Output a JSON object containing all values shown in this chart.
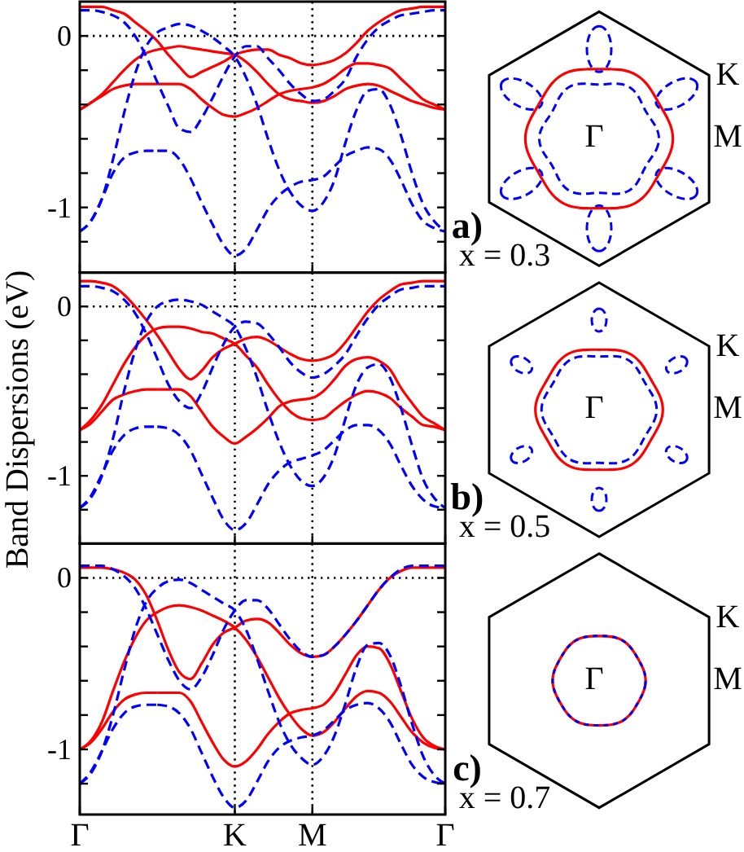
{
  "chart_data": [
    {
      "type": "line",
      "categories": [
        "Γ",
        null,
        null,
        null,
        null,
        null,
        null,
        null,
        null,
        null,
        null,
        null,
        null,
        null,
        "K",
        null,
        null,
        null,
        null,
        null,
        null,
        "M",
        null,
        null,
        null,
        null,
        null,
        null,
        null,
        null,
        null,
        null,
        null,
        "Γ"
      ],
      "ylim": [
        -1.38,
        0.2
      ],
      "yticks": [
        {
          "value": -1.2,
          "label": null
        },
        {
          "value": -1,
          "label": "-1"
        },
        {
          "value": -0.8,
          "label": null
        },
        {
          "value": -0.6,
          "label": null
        },
        {
          "value": -0.4,
          "label": null
        },
        {
          "value": -0.2,
          "label": null
        },
        {
          "value": 0,
          "label": "0"
        }
      ],
      "tick_labels": "y",
      "ref_lines": [
        {
          "axis": "x",
          "value": "K",
          "color": "#000000",
          "line_style": "dotted"
        },
        {
          "axis": "x",
          "value": "M",
          "color": "#000000",
          "line_style": "dotted"
        },
        {
          "axis": "y",
          "value": 0,
          "color": "#000000",
          "line_style": "dotted"
        }
      ],
      "series": [
        {
          "color": "#ff0000",
          "line_style": "solid",
          "values": [
            0.17,
            0.17,
            0.17,
            0.15,
            0.13,
            0.08,
            0.03,
            -0.03,
            -0.11,
            -0.18,
            -0.24,
            -0.21,
            -0.18,
            -0.15,
            -0.11,
            -0.09,
            -0.08,
            -0.08,
            -0.11,
            -0.13,
            -0.16,
            -0.17,
            -0.16,
            -0.14,
            -0.1,
            -0.04,
            0.03,
            0.08,
            0.12,
            0.15,
            0.16,
            0.17,
            0.17,
            0.17
          ]
        },
        {
          "color": "#ff0000",
          "line_style": "solid",
          "values": [
            -0.43,
            -0.39,
            -0.35,
            -0.31,
            -0.29,
            -0.28,
            -0.28,
            -0.28,
            null,
            null,
            null,
            null,
            null,
            null,
            null,
            null,
            null,
            null,
            null,
            null,
            null,
            null,
            null,
            null,
            null,
            null,
            null,
            null,
            null,
            null,
            null,
            null,
            null,
            null
          ]
        },
        {
          "color": "#ff0000",
          "line_style": "solid",
          "values": [
            null,
            null,
            null,
            null,
            null,
            null,
            null,
            -0.28,
            -0.28,
            -0.28,
            -0.31,
            -0.37,
            -0.42,
            -0.46,
            -0.47,
            -0.45,
            -0.42,
            -0.38,
            -0.34,
            -0.32,
            -0.31,
            -0.3,
            -0.28,
            -0.24,
            -0.19,
            -0.16,
            -0.16,
            -0.17,
            -0.19,
            -0.25,
            -0.31,
            -0.37,
            -0.4,
            -0.43
          ]
        },
        {
          "color": "#ff0000",
          "line_style": "solid",
          "values": [
            -0.43,
            -0.39,
            -0.34,
            -0.27,
            -0.2,
            -0.14,
            -0.1,
            -0.08,
            -0.07,
            -0.06,
            -0.07,
            -0.08,
            -0.09,
            -0.1,
            -0.11,
            -0.15,
            -0.21,
            -0.28,
            -0.34,
            -0.37,
            -0.38,
            -0.39,
            -0.38,
            -0.35,
            -0.31,
            -0.29,
            -0.28,
            -0.29,
            -0.32,
            -0.35,
            -0.38,
            -0.4,
            -0.42,
            -0.43
          ]
        },
        {
          "color": "#0000ff",
          "line_style": "dashed",
          "values": [
            0.15,
            0.15,
            0.14,
            0.12,
            0.08,
            0,
            -0.12,
            -0.27,
            -0.41,
            -0.54,
            -0.56,
            -0.48,
            -0.36,
            -0.23,
            -0.12,
            -0.06,
            -0.06,
            -0.13,
            -0.2,
            -0.28,
            -0.34,
            -0.38,
            -0.37,
            -0.32,
            -0.25,
            -0.12,
            -0.02,
            0.05,
            0.09,
            0.12,
            0.13,
            0.14,
            0.15,
            0.15
          ]
        },
        {
          "color": "#0000ff",
          "line_style": "dashed",
          "values": [
            -1.14,
            -1.08,
            -0.95,
            -0.72,
            -0.45,
            -0.22,
            -0.06,
            0.02,
            0.05,
            0.07,
            0.06,
            0.03,
            -0.01,
            -0.06,
            -0.12,
            -0.24,
            -0.4,
            -0.6,
            -0.78,
            -0.91,
            -0.99,
            -1.02,
            -0.97,
            -0.84,
            -0.62,
            -0.43,
            -0.32,
            -0.31,
            -0.4,
            -0.58,
            -0.8,
            -0.98,
            -1.08,
            -1.14
          ]
        },
        {
          "color": "#0000ff",
          "line_style": "dashed",
          "values": [
            -1.14,
            -1.08,
            -0.95,
            -0.8,
            -0.71,
            -0.68,
            -0.67,
            -0.67,
            null,
            null,
            null,
            null,
            null,
            null,
            null,
            null,
            null,
            null,
            null,
            null,
            null,
            null,
            null,
            null,
            null,
            null,
            null,
            null,
            null,
            null,
            null,
            null,
            null,
            null
          ]
        },
        {
          "color": "#0000ff",
          "line_style": "dashed",
          "values": [
            null,
            null,
            null,
            null,
            null,
            null,
            null,
            -0.67,
            -0.67,
            -0.72,
            -0.83,
            -0.97,
            -1.1,
            -1.22,
            -1.28,
            -1.24,
            -1.13,
            -1.01,
            -0.93,
            -0.88,
            -0.85,
            -0.84,
            -0.82,
            -0.76,
            -0.7,
            -0.67,
            -0.65,
            -0.66,
            -0.72,
            -0.84,
            -0.98,
            -1.08,
            -1.12,
            -1.14
          ]
        }
      ]
    },
    {
      "type": "other",
      "annotations": [
        "Γ",
        "K",
        "M",
        "a)",
        "x = 0.3"
      ]
    },
    {
      "type": "line",
      "ylabel": "Band Dispersions (eV)",
      "categories": [
        "Γ",
        null,
        null,
        null,
        null,
        null,
        null,
        null,
        null,
        null,
        null,
        null,
        null,
        null,
        "K",
        null,
        null,
        null,
        null,
        null,
        null,
        "M",
        null,
        null,
        null,
        null,
        null,
        null,
        null,
        null,
        null,
        null,
        null,
        "Γ"
      ],
      "ylim": [
        -1.4,
        0.2
      ],
      "yticks": [
        {
          "value": -1.2,
          "label": null
        },
        {
          "value": -1,
          "label": "-1"
        },
        {
          "value": -0.8,
          "label": null
        },
        {
          "value": -0.6,
          "label": null
        },
        {
          "value": -0.4,
          "label": null
        },
        {
          "value": -0.2,
          "label": null
        },
        {
          "value": 0,
          "label": "0"
        }
      ],
      "tick_labels": "y",
      "ref_lines": [
        {
          "axis": "x",
          "value": "K",
          "color": "#000000",
          "line_style": "dotted"
        },
        {
          "axis": "x",
          "value": "M",
          "color": "#000000",
          "line_style": "dotted"
        },
        {
          "axis": "y",
          "value": 0,
          "color": "#000000",
          "line_style": "dotted"
        }
      ],
      "series": [
        {
          "color": "#ff0000",
          "line_style": "solid",
          "values": [
            0.15,
            0.15,
            0.14,
            0.12,
            0.07,
            0,
            -0.08,
            -0.17,
            -0.27,
            -0.37,
            -0.43,
            -0.38,
            -0.3,
            -0.25,
            -0.22,
            -0.19,
            -0.18,
            -0.2,
            -0.24,
            -0.28,
            -0.31,
            -0.32,
            -0.31,
            -0.28,
            -0.21,
            -0.12,
            -0.03,
            0.04,
            0.09,
            0.13,
            0.14,
            0.15,
            0.15,
            0.15
          ]
        },
        {
          "color": "#ff0000",
          "line_style": "solid",
          "values": [
            -0.73,
            -0.69,
            -0.62,
            -0.55,
            -0.52,
            -0.5,
            -0.49,
            -0.49,
            null,
            null,
            null,
            null,
            null,
            null,
            null,
            null,
            null,
            null,
            null,
            null,
            null,
            null,
            null,
            null,
            null,
            null,
            null,
            null,
            null,
            null,
            null,
            null,
            null,
            null
          ]
        },
        {
          "color": "#ff0000",
          "line_style": "solid",
          "values": [
            null,
            null,
            null,
            null,
            null,
            null,
            null,
            -0.49,
            -0.49,
            -0.49,
            -0.53,
            -0.62,
            -0.71,
            -0.77,
            -0.81,
            -0.77,
            -0.72,
            -0.66,
            -0.59,
            -0.56,
            -0.55,
            -0.54,
            -0.5,
            -0.43,
            -0.35,
            -0.31,
            -0.3,
            -0.32,
            -0.37,
            -0.48,
            -0.57,
            -0.65,
            -0.69,
            -0.73
          ]
        },
        {
          "color": "#ff0000",
          "line_style": "solid",
          "values": [
            -0.73,
            -0.67,
            -0.58,
            -0.46,
            -0.34,
            -0.24,
            -0.17,
            -0.13,
            -0.12,
            -0.12,
            -0.13,
            -0.15,
            -0.16,
            -0.19,
            -0.22,
            -0.29,
            -0.36,
            -0.46,
            -0.55,
            -0.62,
            -0.66,
            -0.67,
            -0.66,
            -0.61,
            -0.56,
            -0.52,
            -0.5,
            -0.51,
            -0.54,
            -0.6,
            -0.65,
            -0.7,
            -0.71,
            -0.73
          ]
        },
        {
          "color": "#0000ff",
          "line_style": "dashed",
          "values": [
            0.12,
            0.12,
            0.11,
            0.09,
            0.04,
            -0.04,
            -0.16,
            -0.31,
            -0.46,
            -0.56,
            -0.6,
            -0.51,
            -0.36,
            -0.22,
            -0.12,
            -0.09,
            -0.1,
            -0.16,
            -0.24,
            -0.33,
            -0.39,
            -0.42,
            -0.4,
            -0.35,
            -0.28,
            -0.17,
            -0.07,
            0.01,
            0.06,
            0.1,
            0.11,
            0.12,
            0.12,
            0.12
          ]
        },
        {
          "color": "#0000ff",
          "line_style": "dashed",
          "values": [
            -1.19,
            -1.13,
            -1,
            -0.78,
            -0.5,
            -0.26,
            -0.09,
            0,
            0.03,
            0.04,
            0.03,
            0.01,
            -0.03,
            -0.07,
            -0.12,
            -0.25,
            -0.42,
            -0.62,
            -0.8,
            -0.94,
            -1.03,
            -1.06,
            -1.01,
            -0.88,
            -0.66,
            -0.46,
            -0.36,
            -0.34,
            -0.42,
            -0.6,
            -0.82,
            -1.02,
            -1.13,
            -1.19
          ]
        },
        {
          "color": "#0000ff",
          "line_style": "dashed",
          "values": [
            -1.19,
            -1.12,
            -0.99,
            -0.85,
            -0.76,
            -0.72,
            -0.71,
            -0.71,
            null,
            null,
            null,
            null,
            null,
            null,
            null,
            null,
            null,
            null,
            null,
            null,
            null,
            null,
            null,
            null,
            null,
            null,
            null,
            null,
            null,
            null,
            null,
            null,
            null,
            null
          ]
        },
        {
          "color": "#0000ff",
          "line_style": "dashed",
          "values": [
            null,
            null,
            null,
            null,
            null,
            null,
            null,
            -0.71,
            -0.72,
            -0.76,
            -0.85,
            -0.99,
            -1.13,
            -1.26,
            -1.32,
            -1.28,
            -1.17,
            -1.05,
            -0.97,
            -0.92,
            -0.9,
            -0.88,
            -0.85,
            -0.79,
            -0.73,
            -0.7,
            -0.7,
            -0.73,
            -0.81,
            -0.94,
            -1.06,
            -1.14,
            -1.18,
            -1.19
          ]
        }
      ]
    },
    {
      "type": "other",
      "annotations": [
        "Γ",
        "K",
        "M",
        "b)",
        "x = 0.5"
      ]
    },
    {
      "type": "line",
      "categories": [
        "Γ",
        null,
        null,
        null,
        null,
        null,
        null,
        null,
        null,
        null,
        null,
        null,
        null,
        null,
        "K",
        null,
        null,
        null,
        null,
        null,
        null,
        "M",
        null,
        null,
        null,
        null,
        null,
        null,
        null,
        null,
        null,
        null,
        null,
        "Γ"
      ],
      "ylim": [
        -1.38,
        0.2
      ],
      "yticks": [
        {
          "value": -1.2,
          "label": null
        },
        {
          "value": -1,
          "label": "-1"
        },
        {
          "value": -0.8,
          "label": null
        },
        {
          "value": -0.6,
          "label": null
        },
        {
          "value": -0.4,
          "label": null
        },
        {
          "value": -0.2,
          "label": null
        },
        {
          "value": 0,
          "label": "0"
        }
      ],
      "ref_lines": [
        {
          "axis": "x",
          "value": "K",
          "color": "#000000",
          "line_style": "dotted"
        },
        {
          "axis": "x",
          "value": "M",
          "color": "#000000",
          "line_style": "dotted"
        },
        {
          "axis": "y",
          "value": 0,
          "color": "#000000",
          "line_style": "dotted"
        }
      ],
      "series": [
        {
          "color": "#ff0000",
          "line_style": "solid",
          "values": [
            0.06,
            0.06,
            0.06,
            0.05,
            0.03,
            -0.01,
            -0.1,
            -0.25,
            -0.42,
            -0.55,
            -0.59,
            -0.5,
            -0.39,
            -0.32,
            -0.29,
            -0.25,
            -0.24,
            -0.26,
            -0.32,
            -0.39,
            -0.44,
            -0.46,
            -0.45,
            -0.4,
            -0.33,
            -0.25,
            -0.16,
            -0.07,
            0,
            0.04,
            0.06,
            0.06,
            0.06,
            0.06
          ]
        },
        {
          "color": "#ff0000",
          "line_style": "solid",
          "values": [
            -1,
            -0.96,
            -0.88,
            -0.78,
            -0.71,
            -0.68,
            -0.67,
            -0.67,
            null,
            null,
            null,
            null,
            null,
            null,
            null,
            null,
            null,
            null,
            null,
            null,
            null,
            null,
            null,
            null,
            null,
            null,
            null,
            null,
            null,
            null,
            null,
            null,
            null,
            null
          ]
        },
        {
          "color": "#ff0000",
          "line_style": "solid",
          "values": [
            null,
            null,
            null,
            null,
            null,
            null,
            null,
            -0.67,
            -0.67,
            -0.67,
            -0.72,
            -0.84,
            -0.96,
            -1.06,
            -1.1,
            -1.07,
            -1,
            -0.91,
            -0.84,
            -0.79,
            -0.77,
            -0.76,
            -0.74,
            -0.67,
            -0.56,
            -0.45,
            -0.4,
            -0.41,
            -0.5,
            -0.66,
            -0.82,
            -0.93,
            -0.98,
            -1
          ]
        },
        {
          "color": "#ff0000",
          "line_style": "solid",
          "values": [
            -1,
            -0.95,
            -0.84,
            -0.66,
            -0.49,
            -0.35,
            -0.25,
            -0.2,
            -0.17,
            -0.16,
            -0.17,
            -0.19,
            -0.22,
            -0.25,
            -0.29,
            -0.36,
            -0.46,
            -0.58,
            -0.7,
            -0.8,
            -0.88,
            -0.92,
            -0.9,
            -0.84,
            -0.76,
            -0.69,
            -0.66,
            -0.67,
            -0.72,
            -0.81,
            -0.9,
            -0.96,
            -0.99,
            -1
          ]
        },
        {
          "color": "#0000ff",
          "line_style": "dashed",
          "values": [
            0.07,
            0.07,
            0.07,
            0.05,
            0.01,
            -0.06,
            -0.18,
            -0.33,
            -0.48,
            -0.6,
            -0.65,
            -0.58,
            -0.45,
            -0.3,
            -0.19,
            -0.13,
            -0.13,
            -0.18,
            -0.27,
            -0.36,
            -0.43,
            -0.46,
            -0.45,
            -0.4,
            -0.33,
            -0.25,
            -0.16,
            -0.07,
            0,
            0.05,
            0.07,
            0.07,
            0.07,
            0.07
          ]
        },
        {
          "color": "#0000ff",
          "line_style": "dashed",
          "values": [
            -1.2,
            -1.14,
            -1.01,
            -0.8,
            -0.54,
            -0.3,
            -0.14,
            -0.06,
            -0.02,
            -0.01,
            -0.03,
            -0.07,
            -0.11,
            -0.15,
            -0.19,
            -0.3,
            -0.47,
            -0.66,
            -0.84,
            -0.97,
            -1.05,
            -1.09,
            -1.04,
            -0.92,
            -0.73,
            -0.52,
            -0.39,
            -0.38,
            -0.45,
            -0.63,
            -0.85,
            -1.04,
            -1.15,
            -1.2
          ]
        },
        {
          "color": "#0000ff",
          "line_style": "dashed",
          "values": [
            -1.2,
            -1.13,
            -1.01,
            -0.88,
            -0.79,
            -0.75,
            -0.74,
            -0.74,
            null,
            null,
            null,
            null,
            null,
            null,
            null,
            null,
            null,
            null,
            null,
            null,
            null,
            null,
            null,
            null,
            null,
            null,
            null,
            null,
            null,
            null,
            null,
            null,
            null,
            null
          ]
        },
        {
          "color": "#0000ff",
          "line_style": "dashed",
          "values": [
            null,
            null,
            null,
            null,
            null,
            null,
            null,
            -0.74,
            -0.75,
            -0.79,
            -0.88,
            -1.02,
            -1.16,
            -1.28,
            -1.34,
            -1.3,
            -1.19,
            -1.07,
            -0.99,
            -0.95,
            -0.93,
            -0.92,
            -0.89,
            -0.83,
            -0.77,
            -0.74,
            -0.73,
            -0.76,
            -0.84,
            -0.97,
            -1.09,
            -1.16,
            -1.19,
            -1.2
          ]
        }
      ]
    },
    {
      "type": "other",
      "annotations": [
        "Γ",
        "K",
        "M",
        "c)",
        "x = 0.7"
      ]
    }
  ]
}
